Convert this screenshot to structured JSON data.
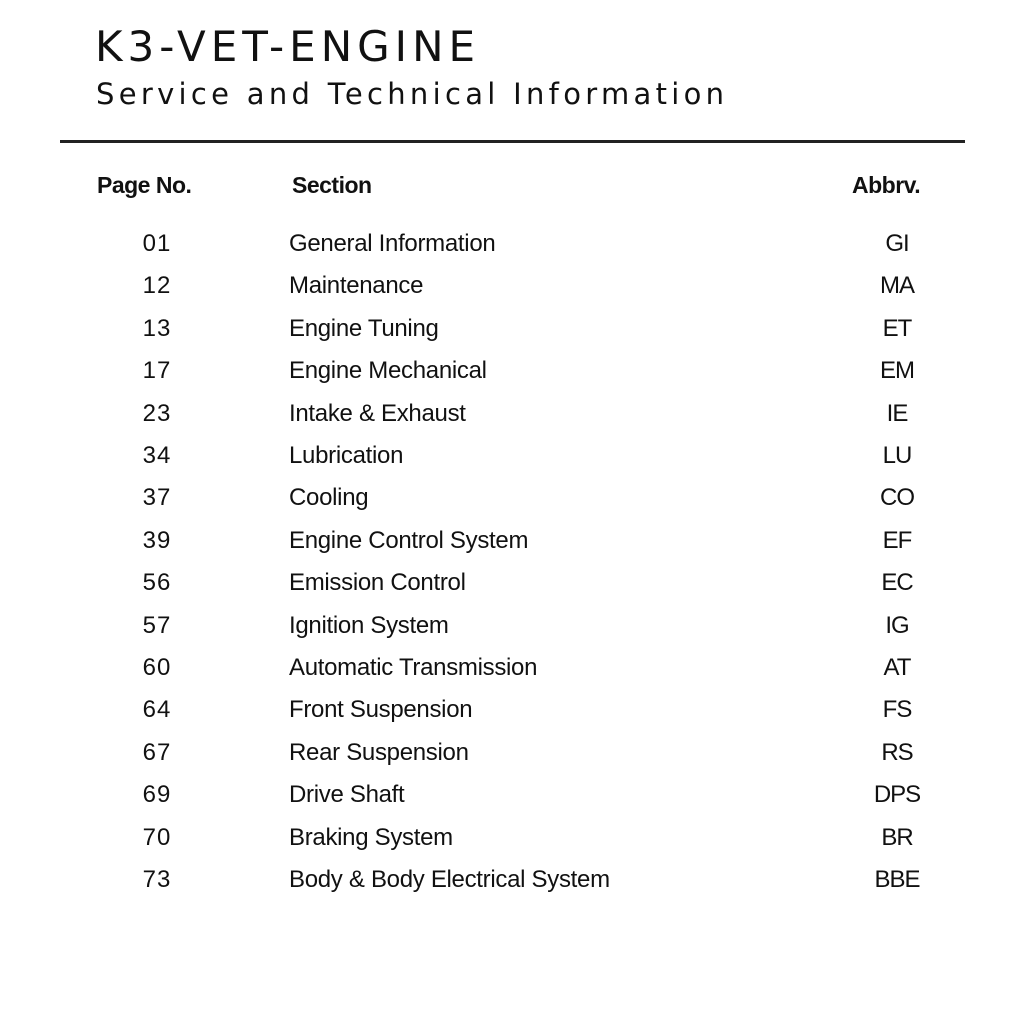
{
  "header": {
    "title": "K3-VET-ENGINE",
    "subtitle": "Service and Technical Information"
  },
  "table": {
    "columns": [
      "Page No.",
      "Section",
      "Abbrv."
    ],
    "rows": [
      {
        "page": "01",
        "section": "General Information",
        "abbr": "GI"
      },
      {
        "page": "12",
        "section": "Maintenance",
        "abbr": "MA"
      },
      {
        "page": "13",
        "section": "Engine Tuning",
        "abbr": "ET"
      },
      {
        "page": "17",
        "section": "Engine Mechanical",
        "abbr": "EM"
      },
      {
        "page": "23",
        "section": "Intake & Exhaust",
        "abbr": "IE"
      },
      {
        "page": "34",
        "section": "Lubrication",
        "abbr": "LU"
      },
      {
        "page": "37",
        "section": "Cooling",
        "abbr": "CO"
      },
      {
        "page": "39",
        "section": "Engine Control System",
        "abbr": "EF"
      },
      {
        "page": "56",
        "section": "Emission Control",
        "abbr": "EC"
      },
      {
        "page": "57",
        "section": "Ignition System",
        "abbr": "IG"
      },
      {
        "page": "60",
        "section": "Automatic Transmission",
        "abbr": "AT"
      },
      {
        "page": "64",
        "section": "Front Suspension",
        "abbr": "FS"
      },
      {
        "page": "67",
        "section": "Rear Suspension",
        "abbr": "RS"
      },
      {
        "page": "69",
        "section": "Drive Shaft",
        "abbr": "DPS"
      },
      {
        "page": "70",
        "section": "Braking System",
        "abbr": "BR"
      },
      {
        "page": "73",
        "section": "Body & Body Electrical System",
        "abbr": "BBE"
      }
    ]
  }
}
